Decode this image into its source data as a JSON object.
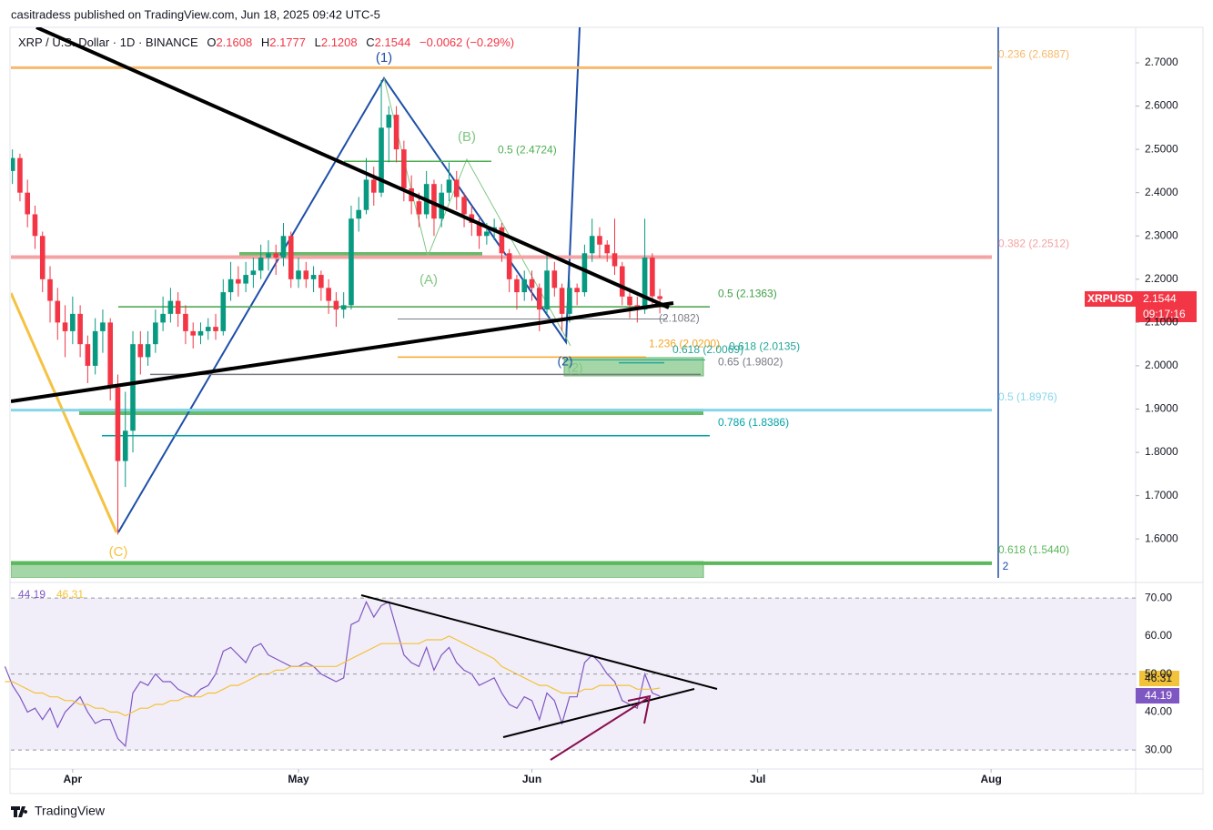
{
  "header": {
    "publisher": "casitradess published on TradingView.com, Jun 18, 2025 09:42 UTC-5",
    "symbol": "XRP / U.S. Dollar · 1D · BINANCE",
    "ohlc_labels": [
      "O",
      "H",
      "L",
      "C"
    ],
    "change": "−0.0062 (−0.29%)"
  },
  "chart_data": [
    {
      "type": "candlestick",
      "ticker": "XRPUSD",
      "countdown": "09:17:16",
      "up_color": "#089981",
      "down_color": "#f23645",
      "candles": [
        [
          2.4,
          2.5,
          2.38,
          2.45
        ],
        [
          2.45,
          2.5,
          2.42,
          2.48
        ],
        [
          2.48,
          2.49,
          2.38,
          2.4
        ],
        [
          2.4,
          2.43,
          2.32,
          2.35
        ],
        [
          2.35,
          2.37,
          2.27,
          2.3
        ],
        [
          2.3,
          2.31,
          2.17,
          2.2
        ],
        [
          2.2,
          2.23,
          2.1,
          2.15
        ],
        [
          2.15,
          2.18,
          2.06,
          2.1
        ],
        [
          2.1,
          2.14,
          2.02,
          2.08
        ],
        [
          2.08,
          2.16,
          2.05,
          2.12
        ],
        [
          2.12,
          2.14,
          2.02,
          2.05
        ],
        [
          2.05,
          2.07,
          1.96,
          2.0
        ],
        [
          2.0,
          2.11,
          1.98,
          2.08
        ],
        [
          2.08,
          2.13,
          2.03,
          2.1
        ],
        [
          2.1,
          2.11,
          1.92,
          1.95
        ],
        [
          1.95,
          1.98,
          1.61,
          1.78
        ],
        [
          1.78,
          1.94,
          1.72,
          1.85
        ],
        [
          1.85,
          2.08,
          1.8,
          2.05
        ],
        [
          2.05,
          2.08,
          1.98,
          2.02
        ],
        [
          2.02,
          2.08,
          2.0,
          2.05
        ],
        [
          2.05,
          2.13,
          2.03,
          2.1
        ],
        [
          2.1,
          2.16,
          2.08,
          2.12
        ],
        [
          2.12,
          2.18,
          2.1,
          2.15
        ],
        [
          2.15,
          2.17,
          2.09,
          2.12
        ],
        [
          2.12,
          2.14,
          2.05,
          2.08
        ],
        [
          2.08,
          2.1,
          2.04,
          2.07
        ],
        [
          2.07,
          2.1,
          2.05,
          2.08
        ],
        [
          2.08,
          2.11,
          2.06,
          2.09
        ],
        [
          2.09,
          2.12,
          2.06,
          2.08
        ],
        [
          2.08,
          2.2,
          2.07,
          2.17
        ],
        [
          2.17,
          2.24,
          2.15,
          2.2
        ],
        [
          2.2,
          2.23,
          2.16,
          2.19
        ],
        [
          2.19,
          2.24,
          2.17,
          2.21
        ],
        [
          2.21,
          2.25,
          2.18,
          2.22
        ],
        [
          2.22,
          2.28,
          2.2,
          2.25
        ],
        [
          2.25,
          2.29,
          2.22,
          2.26
        ],
        [
          2.26,
          2.28,
          2.21,
          2.25
        ],
        [
          2.25,
          2.33,
          2.23,
          2.3
        ],
        [
          2.3,
          2.31,
          2.18,
          2.2
        ],
        [
          2.2,
          2.25,
          2.18,
          2.22
        ],
        [
          2.22,
          2.24,
          2.18,
          2.2
        ],
        [
          2.2,
          2.23,
          2.17,
          2.21
        ],
        [
          2.21,
          2.22,
          2.15,
          2.18
        ],
        [
          2.18,
          2.2,
          2.12,
          2.15
        ],
        [
          2.15,
          2.17,
          2.09,
          2.13
        ],
        [
          2.13,
          2.17,
          2.11,
          2.14
        ],
        [
          2.14,
          2.37,
          2.13,
          2.34
        ],
        [
          2.34,
          2.39,
          2.31,
          2.36
        ],
        [
          2.36,
          2.48,
          2.35,
          2.43
        ],
        [
          2.43,
          2.46,
          2.37,
          2.4
        ],
        [
          2.4,
          2.66,
          2.39,
          2.55
        ],
        [
          2.55,
          2.6,
          2.47,
          2.58
        ],
        [
          2.58,
          2.6,
          2.47,
          2.5
        ],
        [
          2.5,
          2.52,
          2.38,
          2.41
        ],
        [
          2.41,
          2.44,
          2.35,
          2.38
        ],
        [
          2.38,
          2.4,
          2.32,
          2.35
        ],
        [
          2.35,
          2.45,
          2.34,
          2.42
        ],
        [
          2.42,
          2.43,
          2.3,
          2.34
        ],
        [
          2.34,
          2.42,
          2.32,
          2.4
        ],
        [
          2.4,
          2.47,
          2.38,
          2.43
        ],
        [
          2.43,
          2.45,
          2.36,
          2.39
        ],
        [
          2.39,
          2.4,
          2.32,
          2.35
        ],
        [
          2.35,
          2.37,
          2.3,
          2.33
        ],
        [
          2.33,
          2.34,
          2.27,
          2.3
        ],
        [
          2.3,
          2.33,
          2.28,
          2.31
        ],
        [
          2.31,
          2.34,
          2.29,
          2.32
        ],
        [
          2.32,
          2.33,
          2.24,
          2.26
        ],
        [
          2.26,
          2.27,
          2.17,
          2.2
        ],
        [
          2.2,
          2.21,
          2.13,
          2.17
        ],
        [
          2.17,
          2.22,
          2.15,
          2.2
        ],
        [
          2.2,
          2.22,
          2.15,
          2.18
        ],
        [
          2.18,
          2.19,
          2.08,
          2.13
        ],
        [
          2.13,
          2.26,
          2.12,
          2.22
        ],
        [
          2.22,
          2.24,
          2.16,
          2.18
        ],
        [
          2.18,
          2.19,
          2.08,
          2.12
        ],
        [
          2.12,
          2.2,
          2.1,
          2.18
        ],
        [
          2.18,
          2.19,
          2.14,
          2.17
        ],
        [
          2.17,
          2.28,
          2.16,
          2.26
        ],
        [
          2.26,
          2.34,
          2.24,
          2.3
        ],
        [
          2.3,
          2.32,
          2.25,
          2.28
        ],
        [
          2.28,
          2.29,
          2.24,
          2.26
        ],
        [
          2.26,
          2.34,
          2.21,
          2.23
        ],
        [
          2.23,
          2.24,
          2.14,
          2.16
        ],
        [
          2.16,
          2.18,
          2.11,
          2.14
        ],
        [
          2.14,
          2.16,
          2.1,
          2.13
        ],
        [
          2.13,
          2.34,
          2.12,
          2.25
        ],
        [
          2.25,
          2.26,
          2.14,
          2.1606
        ],
        [
          2.1608,
          2.1777,
          2.1208,
          2.1544
        ]
      ],
      "ylim": [
        1.51,
        2.782
      ],
      "yticks": [
        {
          "value": 2.7,
          "label": "2.7000"
        },
        {
          "value": 2.6,
          "label": "2.6000"
        },
        {
          "value": 2.5,
          "label": "2.5000"
        },
        {
          "value": 2.4,
          "label": "2.4000"
        },
        {
          "value": 2.3,
          "label": "2.3000"
        },
        {
          "value": 2.2,
          "label": "2.2000"
        },
        {
          "value": 2.1,
          "label": "2.1000"
        },
        {
          "value": 2.0,
          "label": "2.0000"
        },
        {
          "value": 1.9,
          "label": "1.9000"
        },
        {
          "value": 1.8,
          "label": "1.8000"
        },
        {
          "value": 1.7,
          "label": "1.7000"
        },
        {
          "value": 1.6,
          "label": "1.6000"
        }
      ],
      "xlim": [
        0.8,
        150.2
      ],
      "xticks": [
        {
          "value": 9,
          "label": "Apr"
        },
        {
          "value": 39,
          "label": "May"
        },
        {
          "value": 70,
          "label": "Jun"
        },
        {
          "value": 100,
          "label": "Jul"
        },
        {
          "value": 131,
          "label": "Aug"
        }
      ],
      "fib_levels": [
        {
          "label": "0.236 (2.6887)",
          "price": 2.6887,
          "color": "#f7b96b"
        },
        {
          "label": "0.382 (2.2512)",
          "price": 2.2512,
          "color": "#f3a3a3"
        },
        {
          "label": "0.5 (1.8976)",
          "price": 1.8976,
          "color": "#86d6ea"
        },
        {
          "label": "0.618 (1.5440)",
          "price": 1.544,
          "color": "#5cb85c"
        },
        {
          "label": "0.5 (2.4724)",
          "price": 2.4724,
          "color": "#4caf50"
        },
        {
          "label": "0.5 (2.1363)",
          "price": 2.1363,
          "color": "#43a047"
        },
        {
          "label": "(2.1082)",
          "price": 2.1082,
          "color": "#787b86"
        },
        {
          "label": "1.236 (2.0200)",
          "price": 2.02,
          "color": "#f5a623"
        },
        {
          "label": "0.618 (2.0069)",
          "price": 2.0069,
          "color": "#26a69a"
        },
        {
          "label": "0.618 (2.0135)",
          "price": 2.0135,
          "color": "#26a69a"
        },
        {
          "label": "0.65 (1.9802)",
          "price": 1.9802,
          "color": "#787b86"
        },
        {
          "label": "0.786 (1.8386)",
          "price": 1.8386,
          "color": "#00a3a8"
        }
      ],
      "waves": [
        {
          "label": "(1)",
          "color": "#1e4fa8"
        },
        {
          "label": "(A)",
          "color": "#81c784"
        },
        {
          "label": "(B)",
          "color": "#81c784"
        },
        {
          "label": "(C)",
          "color": "#f5c242"
        },
        {
          "label": "(2)",
          "color": "#1e4fa8"
        },
        {
          "label": "(2)",
          "color": "#81c784"
        },
        {
          "label": "2",
          "color": "#1e4fa8"
        }
      ]
    },
    {
      "type": "line",
      "series": [
        {
          "color": "#7e57c2",
          "values": [
            52,
            47,
            44,
            40,
            41,
            38,
            41,
            36,
            40,
            42,
            44,
            40,
            37,
            38,
            38,
            33,
            31,
            45,
            48,
            47,
            50,
            48,
            48,
            46,
            45,
            44,
            46,
            47,
            50,
            56,
            57,
            55,
            53,
            57,
            58,
            55,
            54,
            53,
            52,
            52,
            53,
            52,
            50,
            49,
            48,
            49,
            63,
            64,
            69,
            65,
            68,
            69,
            62,
            55,
            53,
            52,
            57,
            51,
            55,
            57,
            53,
            51,
            50,
            47,
            48,
            49,
            45,
            42,
            41,
            44,
            43,
            38,
            45,
            43,
            37,
            44,
            44,
            53,
            55,
            53,
            50,
            48,
            43,
            42,
            41,
            50,
            45,
            44.19
          ]
        },
        {
          "color": "#f2c23a",
          "values": [
            48,
            48,
            47,
            46,
            45,
            45,
            44,
            44,
            43,
            43,
            42,
            42,
            41,
            41,
            40,
            40,
            39,
            40,
            41,
            41,
            42,
            42,
            43,
            43,
            44,
            44,
            44,
            45,
            45,
            46,
            47,
            47,
            48,
            49,
            50,
            50,
            51,
            51,
            52,
            52,
            52,
            52,
            52,
            52,
            52,
            53,
            54,
            55,
            56,
            57,
            58,
            58,
            58,
            58,
            58,
            58,
            59,
            59,
            59,
            60,
            59,
            58,
            57,
            56,
            55,
            54,
            52,
            51,
            50,
            49,
            48,
            47,
            47,
            46,
            45,
            45,
            45,
            46,
            46,
            47,
            47,
            47,
            47,
            47,
            46,
            46,
            46,
            46.31
          ]
        }
      ],
      "ylim": [
        25,
        72.9
      ],
      "yticks": [
        {
          "value": 70,
          "label": "70.00"
        },
        {
          "value": 60,
          "label": "60.00"
        },
        {
          "value": 50,
          "label": "50.00"
        },
        {
          "value": 40,
          "label": "40.00"
        },
        {
          "value": 30,
          "label": "30.00"
        }
      ]
    }
  ],
  "footer": {
    "brand": "TradingView"
  }
}
